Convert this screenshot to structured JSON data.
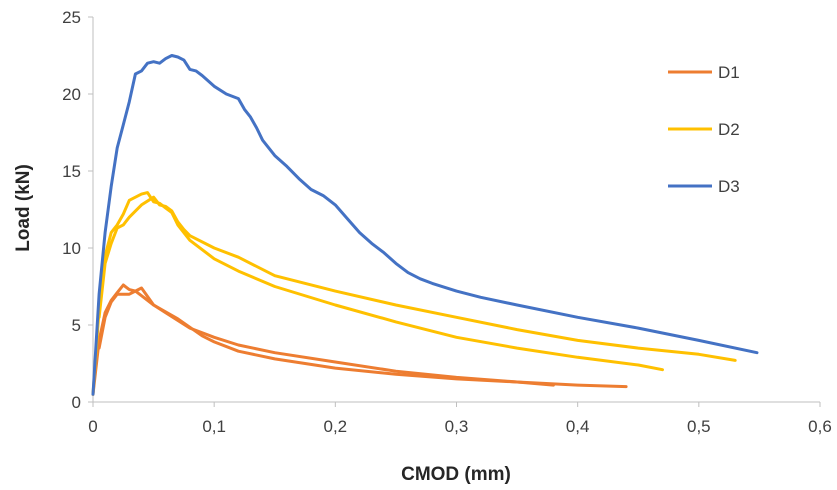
{
  "chart_data": {
    "type": "line",
    "title": "",
    "xlabel": "CMOD (mm)",
    "ylabel": "Load (kN)",
    "xlim": [
      0,
      0.6
    ],
    "ylim": [
      0,
      25
    ],
    "x_ticks": [
      0,
      0.1,
      0.2,
      0.3,
      0.4,
      0.5,
      0.6
    ],
    "x_tick_labels": [
      "0",
      "0,1",
      "0,2",
      "0,3",
      "0,4",
      "0,5",
      "0,6"
    ],
    "y_ticks": [
      0,
      5,
      10,
      15,
      20,
      25
    ],
    "y_tick_labels": [
      "0",
      "5",
      "10",
      "15",
      "20",
      "25"
    ],
    "grid": false,
    "legend_position": "right",
    "series": [
      {
        "name": "D1",
        "color": "#ED7D31",
        "lines": [
          [
            [
              0,
              0.5
            ],
            [
              0.005,
              4.0
            ],
            [
              0.01,
              5.8
            ],
            [
              0.015,
              6.6
            ],
            [
              0.02,
              7.1
            ],
            [
              0.025,
              7.6
            ],
            [
              0.03,
              7.3
            ],
            [
              0.035,
              7.2
            ],
            [
              0.04,
              6.9
            ],
            [
              0.05,
              6.3
            ],
            [
              0.06,
              5.8
            ],
            [
              0.08,
              4.8
            ],
            [
              0.1,
              4.2
            ],
            [
              0.12,
              3.7
            ],
            [
              0.15,
              3.2
            ],
            [
              0.2,
              2.6
            ],
            [
              0.25,
              2.0
            ],
            [
              0.3,
              1.6
            ],
            [
              0.35,
              1.3
            ],
            [
              0.38,
              1.1
            ]
          ],
          [
            [
              0.005,
              3.5
            ],
            [
              0.01,
              5.5
            ],
            [
              0.015,
              6.5
            ],
            [
              0.02,
              7.0
            ],
            [
              0.03,
              7.0
            ],
            [
              0.04,
              7.4
            ],
            [
              0.05,
              6.3
            ],
            [
              0.07,
              5.4
            ],
            [
              0.09,
              4.3
            ],
            [
              0.1,
              3.9
            ],
            [
              0.12,
              3.3
            ],
            [
              0.15,
              2.8
            ],
            [
              0.2,
              2.2
            ],
            [
              0.25,
              1.8
            ],
            [
              0.3,
              1.5
            ],
            [
              0.35,
              1.3
            ],
            [
              0.4,
              1.1
            ],
            [
              0.44,
              1.0
            ]
          ]
        ]
      },
      {
        "name": "D2",
        "color": "#FFC000",
        "lines": [
          [
            [
              0,
              0.5
            ],
            [
              0.005,
              6.0
            ],
            [
              0.01,
              9.5
            ],
            [
              0.015,
              11.0
            ],
            [
              0.02,
              11.5
            ],
            [
              0.025,
              12.2
            ],
            [
              0.03,
              13.1
            ],
            [
              0.035,
              13.3
            ],
            [
              0.04,
              13.5
            ],
            [
              0.045,
              13.6
            ],
            [
              0.05,
              13.0
            ],
            [
              0.055,
              12.9
            ],
            [
              0.06,
              12.6
            ],
            [
              0.065,
              12.3
            ],
            [
              0.07,
              11.5
            ],
            [
              0.08,
              10.5
            ],
            [
              0.1,
              9.3
            ],
            [
              0.12,
              8.5
            ],
            [
              0.15,
              7.5
            ],
            [
              0.2,
              6.3
            ],
            [
              0.25,
              5.2
            ],
            [
              0.3,
              4.2
            ],
            [
              0.35,
              3.5
            ],
            [
              0.4,
              2.9
            ],
            [
              0.45,
              2.4
            ],
            [
              0.47,
              2.1
            ]
          ],
          [
            [
              0.005,
              5.5
            ],
            [
              0.01,
              9.0
            ],
            [
              0.015,
              10.3
            ],
            [
              0.02,
              11.3
            ],
            [
              0.025,
              11.5
            ],
            [
              0.03,
              12.0
            ],
            [
              0.04,
              12.8
            ],
            [
              0.05,
              13.3
            ],
            [
              0.055,
              12.8
            ],
            [
              0.06,
              12.7
            ],
            [
              0.065,
              12.4
            ],
            [
              0.07,
              11.7
            ],
            [
              0.075,
              11.2
            ],
            [
              0.08,
              10.8
            ],
            [
              0.1,
              10.0
            ],
            [
              0.12,
              9.4
            ],
            [
              0.15,
              8.2
            ],
            [
              0.2,
              7.2
            ],
            [
              0.25,
              6.3
            ],
            [
              0.3,
              5.5
            ],
            [
              0.35,
              4.7
            ],
            [
              0.4,
              4.0
            ],
            [
              0.45,
              3.5
            ],
            [
              0.5,
              3.1
            ],
            [
              0.53,
              2.7
            ]
          ]
        ]
      },
      {
        "name": "D3",
        "color": "#4472C4",
        "lines": [
          [
            [
              0,
              0.5
            ],
            [
              0.005,
              7.0
            ],
            [
              0.01,
              11.0
            ],
            [
              0.015,
              14.0
            ],
            [
              0.02,
              16.5
            ],
            [
              0.025,
              18.0
            ],
            [
              0.03,
              19.5
            ],
            [
              0.035,
              21.3
            ],
            [
              0.04,
              21.5
            ],
            [
              0.045,
              22.0
            ],
            [
              0.05,
              22.1
            ],
            [
              0.055,
              22.0
            ],
            [
              0.06,
              22.3
            ],
            [
              0.065,
              22.5
            ],
            [
              0.07,
              22.4
            ],
            [
              0.075,
              22.2
            ],
            [
              0.08,
              21.6
            ],
            [
              0.085,
              21.5
            ],
            [
              0.09,
              21.2
            ],
            [
              0.1,
              20.5
            ],
            [
              0.11,
              20.0
            ],
            [
              0.12,
              19.7
            ],
            [
              0.125,
              19.0
            ],
            [
              0.13,
              18.5
            ],
            [
              0.135,
              17.8
            ],
            [
              0.14,
              17.0
            ],
            [
              0.15,
              16.0
            ],
            [
              0.16,
              15.3
            ],
            [
              0.17,
              14.5
            ],
            [
              0.18,
              13.8
            ],
            [
              0.19,
              13.4
            ],
            [
              0.2,
              12.8
            ],
            [
              0.21,
              11.9
            ],
            [
              0.22,
              11.0
            ],
            [
              0.23,
              10.3
            ],
            [
              0.24,
              9.7
            ],
            [
              0.25,
              9.0
            ],
            [
              0.26,
              8.4
            ],
            [
              0.27,
              8.0
            ],
            [
              0.28,
              7.7
            ],
            [
              0.3,
              7.2
            ],
            [
              0.32,
              6.8
            ],
            [
              0.35,
              6.3
            ],
            [
              0.4,
              5.5
            ],
            [
              0.45,
              4.8
            ],
            [
              0.5,
              4.0
            ],
            [
              0.548,
              3.2
            ]
          ]
        ]
      }
    ]
  }
}
